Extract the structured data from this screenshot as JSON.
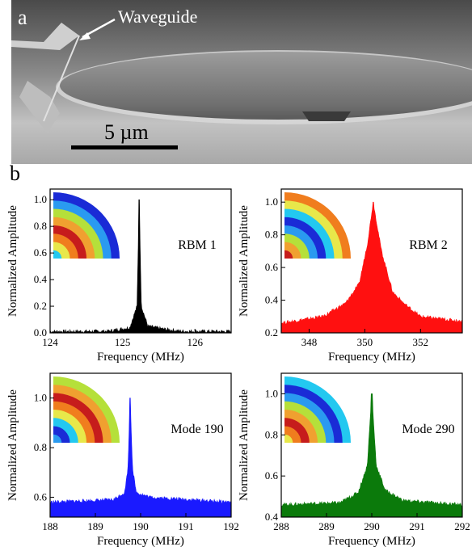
{
  "figure": {
    "panel_a_label": "a",
    "panel_b_label": "b",
    "waveguide_label": "Waveguide",
    "scale_bar_label": "5 µm"
  },
  "colors": {
    "rbm1": "#000000",
    "rbm2": "#ff1010",
    "mode190": "#1a1aff",
    "mode290": "#0b7a0b"
  },
  "chart_data": [
    {
      "type": "line",
      "label": "RBM 1",
      "xlabel": "Frequency (MHz)",
      "ylabel": "Normalized Amplitude",
      "xlim": [
        124,
        126.5
      ],
      "ylim": [
        0,
        1.08
      ],
      "xticks": [
        124,
        125,
        126
      ],
      "yticks": [
        0.0,
        0.2,
        0.4,
        0.6,
        0.8,
        1.0
      ],
      "peak": {
        "x": 125.23,
        "y": 1.0
      },
      "baseline": 0.01,
      "points": [
        [
          124,
          0.01
        ],
        [
          124.8,
          0.012
        ],
        [
          125.1,
          0.04
        ],
        [
          125.2,
          0.2
        ],
        [
          125.23,
          1.0
        ],
        [
          125.26,
          0.2
        ],
        [
          125.35,
          0.05
        ],
        [
          125.55,
          0.03
        ],
        [
          125.8,
          0.012
        ],
        [
          126.5,
          0.01
        ]
      ]
    },
    {
      "type": "line",
      "label": "RBM 2",
      "xlabel": "Frequency (MHz)",
      "ylabel": "Normalized Amplitude",
      "xlim": [
        347,
        353.5
      ],
      "ylim": [
        0.2,
        1.08
      ],
      "xticks": [
        348,
        350,
        352
      ],
      "yticks": [
        0.2,
        0.4,
        0.6,
        0.8,
        1.0
      ],
      "peak": {
        "x": 350.3,
        "y": 1.0
      },
      "baseline": 0.26,
      "points": [
        [
          347,
          0.26
        ],
        [
          348.5,
          0.3
        ],
        [
          349.3,
          0.38
        ],
        [
          349.8,
          0.5
        ],
        [
          350.1,
          0.75
        ],
        [
          350.3,
          1.0
        ],
        [
          350.6,
          0.7
        ],
        [
          351.0,
          0.45
        ],
        [
          351.4,
          0.38
        ],
        [
          352,
          0.3
        ],
        [
          353.5,
          0.27
        ]
      ]
    },
    {
      "type": "line",
      "label": "Mode 190",
      "xlabel": "Frequency (MHz)",
      "ylabel": "Normalized Amplitude",
      "xlim": [
        188,
        192
      ],
      "ylim": [
        0.52,
        1.1
      ],
      "xticks": [
        188,
        189,
        190,
        191,
        192
      ],
      "yticks": [
        0.6,
        0.8,
        1.0
      ],
      "peak": {
        "x": 189.77,
        "y": 1.0
      },
      "baseline": 0.58,
      "points": [
        [
          188,
          0.58
        ],
        [
          189.4,
          0.59
        ],
        [
          189.65,
          0.62
        ],
        [
          189.72,
          0.72
        ],
        [
          189.77,
          1.0
        ],
        [
          189.82,
          0.72
        ],
        [
          189.9,
          0.62
        ],
        [
          190.2,
          0.6
        ],
        [
          192,
          0.58
        ]
      ]
    },
    {
      "type": "line",
      "label": "Mode 290",
      "xlabel": "Frequency (MHz)",
      "ylabel": "Normalized Amplitude",
      "xlim": [
        288,
        292
      ],
      "ylim": [
        0.4,
        1.1
      ],
      "xticks": [
        288,
        289,
        290,
        291,
        292
      ],
      "yticks": [
        0.4,
        0.6,
        0.8,
        1.0
      ],
      "peak": {
        "x": 290.0,
        "y": 1.0
      },
      "baseline": 0.46,
      "points": [
        [
          288,
          0.46
        ],
        [
          289.3,
          0.47
        ],
        [
          289.7,
          0.52
        ],
        [
          289.9,
          0.65
        ],
        [
          290.0,
          1.0
        ],
        [
          290.1,
          0.65
        ],
        [
          290.3,
          0.53
        ],
        [
          290.7,
          0.48
        ],
        [
          292,
          0.46
        ]
      ]
    }
  ]
}
